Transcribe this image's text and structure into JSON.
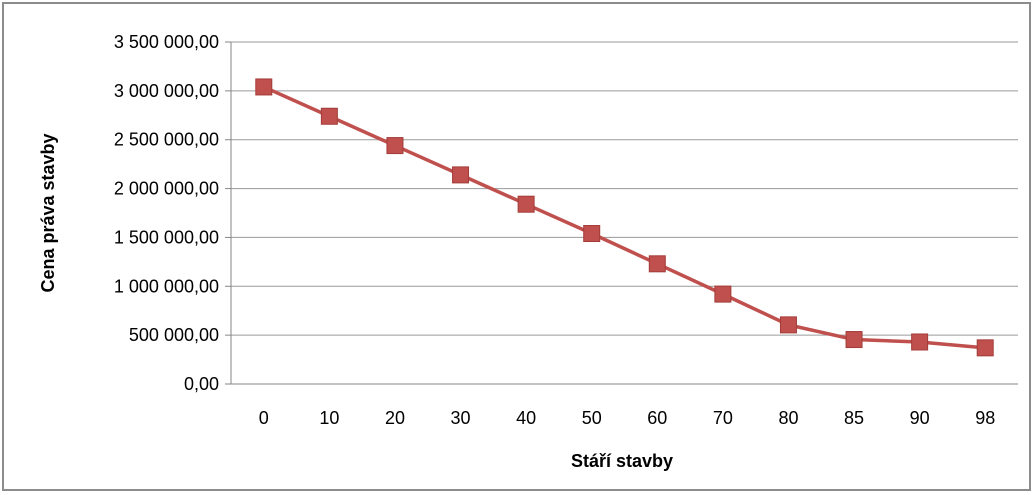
{
  "chart_data": {
    "type": "line",
    "title": "",
    "xlabel": "Stáří stavby",
    "ylabel": "Cena práva stavby",
    "categories": [
      "0",
      "10",
      "20",
      "30",
      "40",
      "50",
      "60",
      "70",
      "80",
      "85",
      "90",
      "98"
    ],
    "series": [
      {
        "values": [
          3040000,
          2740000,
          2440000,
          2140000,
          1840000,
          1540000,
          1230000,
          920000,
          605000,
          455000,
          430000,
          370000
        ],
        "color": "#c0504d",
        "marker": "square"
      }
    ],
    "ylim": [
      0,
      3500000
    ],
    "yticks": [
      "0,00",
      "500 000,00",
      "1 000 000,00",
      "1 500 000,00",
      "2 000 000,00",
      "2 500 000,00",
      "3 000 000,00",
      "3 500 000,00"
    ],
    "grid": true,
    "legend": "none"
  }
}
